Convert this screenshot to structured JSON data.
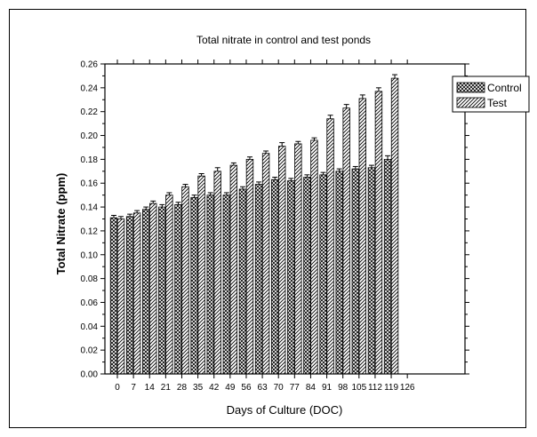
{
  "chart_data": {
    "type": "bar",
    "title": "Total nitrate in control and test ponds",
    "xlabel": "Days of Culture (DOC)",
    "ylabel": "Total Nitrate (ppm)",
    "ylim": [
      0,
      0.26
    ],
    "yticks": [
      "0.00",
      "0.02",
      "0.04",
      "0.06",
      "0.08",
      "0.10",
      "0.12",
      "0.14",
      "0.16",
      "0.18",
      "0.20",
      "0.22",
      "0.24",
      "0.26"
    ],
    "xticks": [
      "0",
      "7",
      "14",
      "21",
      "28",
      "35",
      "42",
      "49",
      "56",
      "63",
      "70",
      "77",
      "84",
      "91",
      "98",
      "105",
      "112",
      "119",
      "126"
    ],
    "categories": [
      "0",
      "7",
      "14",
      "21",
      "28",
      "35",
      "42",
      "49",
      "56",
      "63",
      "70",
      "77",
      "84",
      "91",
      "98",
      "105",
      "112",
      "119"
    ],
    "series": [
      {
        "name": "Control",
        "pattern": "cross-hatch",
        "values": [
          0.131,
          0.132,
          0.138,
          0.14,
          0.142,
          0.148,
          0.15,
          0.15,
          0.155,
          0.159,
          0.163,
          0.162,
          0.165,
          0.167,
          0.17,
          0.172,
          0.173,
          0.18
        ],
        "errors": [
          0.002,
          0.002,
          0.002,
          0.002,
          0.002,
          0.002,
          0.002,
          0.002,
          0.002,
          0.002,
          0.002,
          0.002,
          0.002,
          0.002,
          0.002,
          0.002,
          0.002,
          0.003
        ]
      },
      {
        "name": "Test",
        "pattern": "diagonal",
        "values": [
          0.13,
          0.135,
          0.143,
          0.15,
          0.157,
          0.166,
          0.17,
          0.175,
          0.18,
          0.185,
          0.191,
          0.193,
          0.196,
          0.214,
          0.223,
          0.231,
          0.237,
          0.248
        ],
        "errors": [
          0.002,
          0.002,
          0.002,
          0.002,
          0.002,
          0.002,
          0.003,
          0.002,
          0.002,
          0.002,
          0.003,
          0.002,
          0.002,
          0.003,
          0.003,
          0.003,
          0.003,
          0.003
        ]
      }
    ],
    "legend_position": "top-right",
    "grid": false
  }
}
